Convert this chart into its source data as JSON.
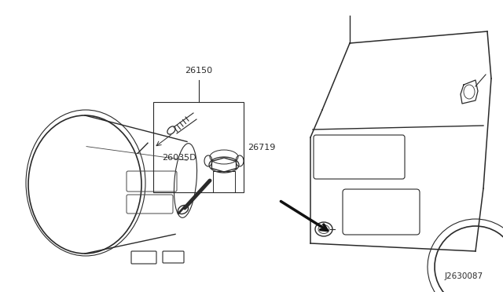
{
  "bg_color": "#ffffff",
  "fig_width": 6.4,
  "fig_height": 3.72,
  "dpi": 100,
  "diagram_code": "J2630087",
  "line_color": "#2a2a2a",
  "detail_color": "#444444"
}
